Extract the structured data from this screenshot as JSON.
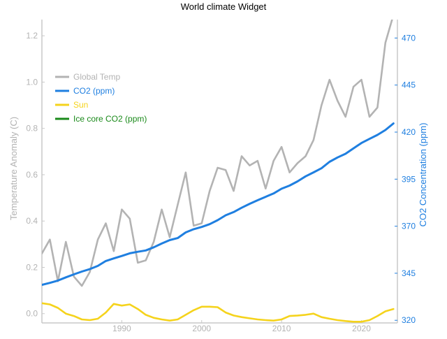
{
  "chart_data": {
    "type": "line",
    "title": "World climate Widget",
    "ylabel_left": "Temperature Anomaly (C)",
    "ylabel_right": "CO2 Concentration (ppm)",
    "xlim": [
      1980,
      2024.5
    ],
    "ylim_left": [
      -0.04,
      1.27
    ],
    "ylim_right": [
      318.6,
      479.8
    ],
    "x_ticks": [
      1990,
      2000,
      2010,
      2020
    ],
    "y_ticks_left": [
      0.0,
      0.2,
      0.4,
      0.6,
      0.8,
      1.0,
      1.2
    ],
    "y_ticks_right": [
      320,
      345,
      370,
      395,
      420,
      445,
      470
    ],
    "legend_position": "upper-left",
    "series": [
      {
        "name": "Global Temp",
        "axis": "left",
        "color": "#b3b3b3",
        "x": [
          1980,
          1981,
          1982,
          1983,
          1984,
          1985,
          1986,
          1987,
          1988,
          1989,
          1990,
          1991,
          1992,
          1993,
          1994,
          1995,
          1996,
          1997,
          1998,
          1999,
          2000,
          2001,
          2002,
          2003,
          2004,
          2005,
          2006,
          2007,
          2008,
          2009,
          2010,
          2011,
          2012,
          2013,
          2014,
          2015,
          2016,
          2017,
          2018,
          2019,
          2020,
          2021,
          2022,
          2023,
          2024
        ],
        "values": [
          0.26,
          0.32,
          0.14,
          0.31,
          0.16,
          0.12,
          0.18,
          0.32,
          0.39,
          0.27,
          0.45,
          0.41,
          0.22,
          0.23,
          0.31,
          0.45,
          0.33,
          0.47,
          0.61,
          0.38,
          0.39,
          0.53,
          0.63,
          0.62,
          0.53,
          0.68,
          0.64,
          0.66,
          0.54,
          0.66,
          0.72,
          0.61,
          0.65,
          0.68,
          0.75,
          0.9,
          1.01,
          0.92,
          0.85,
          0.98,
          1.01,
          0.85,
          0.89,
          1.17,
          1.29
        ]
      },
      {
        "name": "CO2 (ppm)",
        "axis": "right",
        "color": "#1f7fe0",
        "x": [
          1980,
          1981,
          1982,
          1983,
          1984,
          1985,
          1986,
          1987,
          1988,
          1989,
          1990,
          1991,
          1992,
          1993,
          1994,
          1995,
          1996,
          1997,
          1998,
          1999,
          2000,
          2001,
          2002,
          2003,
          2004,
          2005,
          2006,
          2007,
          2008,
          2009,
          2010,
          2011,
          2012,
          2013,
          2014,
          2015,
          2016,
          2017,
          2018,
          2019,
          2020,
          2021,
          2022,
          2023,
          2024
        ],
        "values": [
          338.8,
          339.9,
          341.1,
          342.8,
          344.4,
          345.9,
          347.2,
          348.9,
          351.5,
          352.9,
          354.2,
          355.6,
          356.4,
          357.1,
          358.8,
          360.8,
          362.6,
          363.7,
          366.7,
          368.4,
          369.6,
          371.1,
          373.2,
          375.8,
          377.5,
          379.8,
          381.9,
          383.8,
          385.6,
          387.4,
          389.9,
          391.6,
          393.8,
          396.5,
          398.6,
          400.8,
          404.2,
          406.5,
          408.5,
          411.4,
          414.2,
          416.4,
          418.5,
          421.1,
          424.6
        ]
      },
      {
        "name": "Sun",
        "axis": "left",
        "color": "#f5d31c",
        "x": [
          1980,
          1981,
          1982,
          1983,
          1984,
          1985,
          1986,
          1987,
          1988,
          1989,
          1990,
          1991,
          1992,
          1993,
          1994,
          1995,
          1996,
          1997,
          1998,
          1999,
          2000,
          2001,
          2002,
          2003,
          2004,
          2005,
          2006,
          2007,
          2008,
          2009,
          2010,
          2011,
          2012,
          2013,
          2014,
          2015,
          2016,
          2017,
          2018,
          2019,
          2020,
          2021,
          2022,
          2023,
          2024
        ],
        "values": [
          0.045,
          0.04,
          0.025,
          0.0,
          -0.01,
          -0.025,
          -0.028,
          -0.022,
          0.005,
          0.042,
          0.035,
          0.04,
          0.02,
          -0.005,
          -0.018,
          -0.025,
          -0.03,
          -0.025,
          -0.005,
          0.015,
          0.03,
          0.03,
          0.028,
          0.005,
          -0.008,
          -0.015,
          -0.02,
          -0.025,
          -0.028,
          -0.03,
          -0.025,
          -0.01,
          -0.008,
          -0.005,
          0.0,
          -0.015,
          -0.022,
          -0.028,
          -0.032,
          -0.035,
          -0.035,
          -0.028,
          -0.01,
          0.01,
          0.02
        ]
      },
      {
        "name": "Ice core CO2 (ppm)",
        "axis": "right",
        "color": "#1a8a1a",
        "x": [],
        "values": []
      }
    ]
  }
}
